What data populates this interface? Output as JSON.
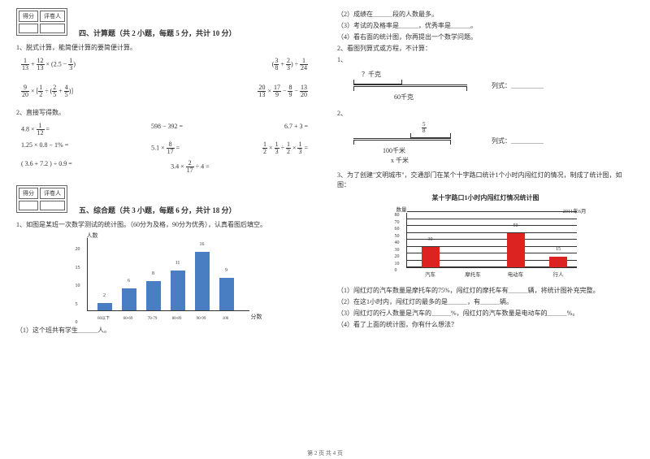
{
  "left": {
    "score_header": [
      "得分",
      "评卷人"
    ],
    "sec4_title": "四、计算题（共 2 小题，每题 5 分，共计 10 分）",
    "q1": "1、脱式计算，能简便计算的要简便计算。",
    "e1": "1/13 + 12/13 × ( 2.5 − 1/3 )",
    "e2": "( 3/8 + 2/3 ) ÷ 1/24",
    "e3": "9/20 × [ 1/2 ÷ ( 2/5 + 4/5 ) ]",
    "e4": "20/13 × 17/9 − 8/9 − 13/20",
    "q2": "2、直接写得数。",
    "r1": [
      "4.8 × 1/12 =",
      "598 − 392 =",
      "6.7 + 3 ="
    ],
    "r2": [
      "1.25 × 0.8 − 1% =",
      "5.1 × 8/17 =",
      "1/2 × 1/3 ÷ 1/2 × 1/3 ="
    ],
    "r3": [
      "( 3.6 + 7.2 ) ÷ 0.9 =",
      "3.4 × 2/17 ÷ 4 =",
      ""
    ],
    "sec5_title": "五、综合题（共 3 小题，每题 6 分，共计 18 分）",
    "q5_1": "1、如图是某班一次数学测试的统计图。（60分为及格，90分为优秀），认真看图后填空。",
    "chart1": {
      "ylabel": "人数",
      "xlabel": "分数",
      "ylim": [
        0,
        20
      ],
      "ytick": 5,
      "bars": [
        {
          "label": "60以下",
          "value": 2
        },
        {
          "label": "60-69",
          "value": 6
        },
        {
          "label": "70-79",
          "value": 8
        },
        {
          "label": "80-89",
          "value": 11
        },
        {
          "label": "90-99",
          "value": 16
        },
        {
          "label": "100",
          "value": 9
        }
      ],
      "bar_color": "#4a7ec2"
    },
    "q5_1_sub": "（1）这个班共有学生＿＿＿人。"
  },
  "right": {
    "subs": [
      "（2）成绩在＿＿＿段的人数最多。",
      "（3）考试的及格率是＿＿＿，优秀率是＿＿＿。",
      "（4）看右面的统计图，你再提出一个数学问题。"
    ],
    "q2": "2、看图列算式或方程，不计算：",
    "d1_label_top": "？千克",
    "d1_label_bot": "60千克",
    "d1_side": "列式：＿＿＿＿＿",
    "d2_label_top": "5/8",
    "d2_label_mid": "100千米",
    "d2_label_bot": "x 千米",
    "d2_side": "列式：＿＿＿＿＿",
    "q3": "3、为了创建\"文明城市\"，交通部门在某个十字路口统计1个小时内闯红灯的情况，制成了统计图，如图：",
    "chart2": {
      "title": "某十字路口1小时内闯红灯情况统计图",
      "date": "2011年6月",
      "ylabel": "数量",
      "ylim": [
        0,
        80
      ],
      "ytick": 10,
      "bars": [
        {
          "label": "汽车",
          "value": 30
        },
        {
          "label": "摩托车",
          "value": null
        },
        {
          "label": "电动车",
          "value": 50
        },
        {
          "label": "行人",
          "value": 15
        }
      ],
      "bar_color": "#d22"
    },
    "subs2": [
      "（1）闯红灯的汽车数量是摩托车的75%，闯红灯的摩托车有＿＿＿辆，将统计图补充完整。",
      "（2）在这1小时内，闯红灯的最多的是＿＿＿，有＿＿＿辆。",
      "（3）闯红灯的行人数量是汽车的＿＿＿%，闯红灯的汽车数量是电动车的＿＿＿%。",
      "（4）看了上面的统计图，你有什么想法？"
    ]
  },
  "footer": "第 2 页 共 4 页"
}
